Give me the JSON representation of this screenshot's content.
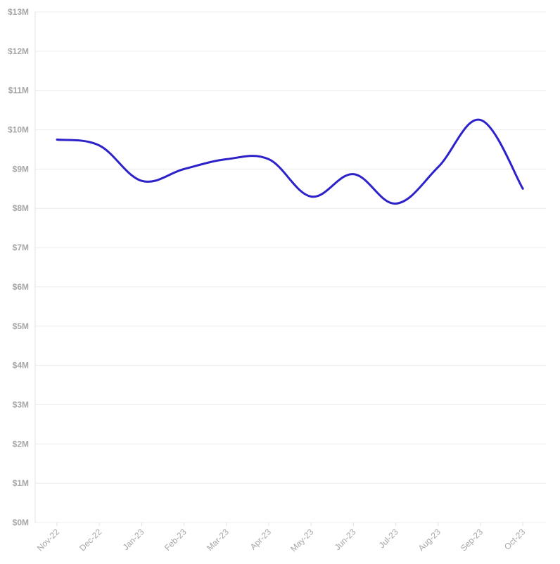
{
  "chart_data": {
    "type": "line",
    "title": "",
    "xlabel": "",
    "ylabel": "",
    "categories": [
      "Nov-22",
      "Dec-22",
      "Jan-23",
      "Feb-23",
      "Mar-23",
      "Apr-23",
      "May-23",
      "Jun-23",
      "Jul-23",
      "Aug-23",
      "Sep-23",
      "Oct-23"
    ],
    "series": [
      {
        "values": [
          9.75,
          9.6,
          8.7,
          9.0,
          9.25,
          9.25,
          8.3,
          8.87,
          8.12,
          9.05,
          10.25,
          8.5
        ],
        "color": "#2d22c9"
      }
    ],
    "ylim": [
      0,
      13
    ],
    "y_ticks": [
      0,
      1,
      2,
      3,
      4,
      5,
      6,
      7,
      8,
      9,
      10,
      11,
      12,
      13
    ],
    "y_tick_labels": [
      "$0M",
      "$1M",
      "$2M",
      "$3M",
      "$4M",
      "$5M",
      "$6M",
      "$7M",
      "$8M",
      "$9M",
      "$10M",
      "$11M",
      "$12M",
      "$13M"
    ],
    "grid": true,
    "legend": "none",
    "colors": {
      "grid": "#ececec",
      "tick_label": "#a6a6a6",
      "line": "#2d22c9"
    }
  }
}
